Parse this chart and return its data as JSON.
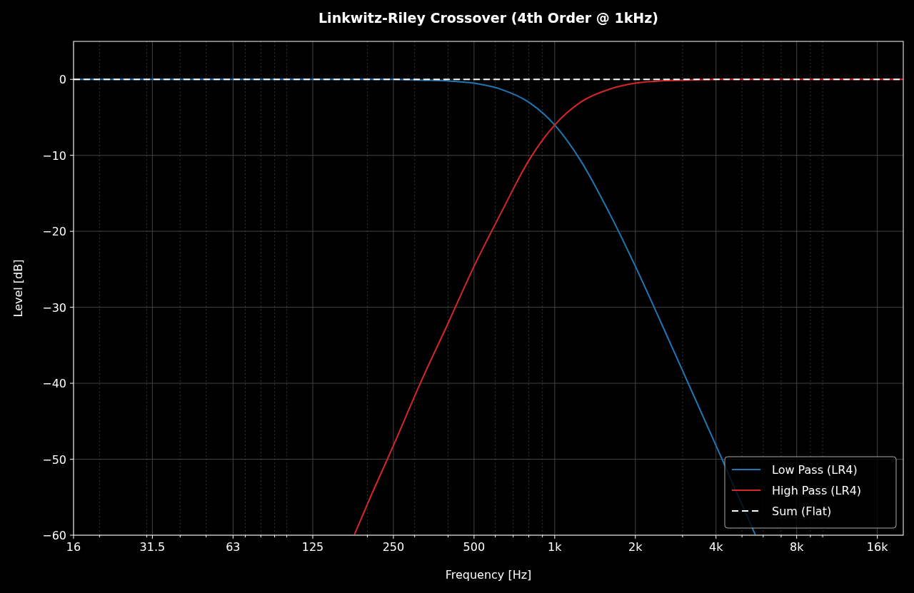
{
  "chart_data": {
    "type": "line",
    "title": "Linkwitz-Riley Crossover (4th Order @ 1kHz)",
    "xlabel": "Frequency [Hz]",
    "ylabel": "Level [dB]",
    "log": "x",
    "grid": true,
    "legend": "bottom right",
    "xlim": [
      16,
      20000
    ],
    "ylim": [
      -60,
      5
    ],
    "xticks": [
      16,
      {
        "value": 20,
        "label": null
      },
      {
        "value": 30,
        "label": null
      },
      31.5,
      {
        "value": 40,
        "label": null
      },
      {
        "value": 50,
        "label": null
      },
      63,
      {
        "value": 70,
        "label": null
      },
      {
        "value": 80,
        "label": null
      },
      {
        "value": 90,
        "label": null
      },
      {
        "value": 100,
        "label": null
      },
      125,
      {
        "value": 200,
        "label": null
      },
      250,
      {
        "value": 300,
        "label": null
      },
      {
        "value": 400,
        "label": null
      },
      500,
      {
        "value": 600,
        "label": null
      },
      {
        "value": 700,
        "label": null
      },
      {
        "value": 800,
        "label": null
      },
      {
        "value": 900,
        "label": null
      },
      {
        "value": 1000,
        "label": "1k"
      },
      {
        "value": 2000,
        "label": "2k"
      },
      {
        "value": 3000,
        "label": null
      },
      {
        "value": 4000,
        "label": "4k"
      },
      {
        "value": 5000,
        "label": null
      },
      {
        "value": 6000,
        "label": null
      },
      {
        "value": 7000,
        "label": null
      },
      {
        "value": 8000,
        "label": "8k"
      },
      {
        "value": 9000,
        "label": null
      },
      {
        "value": 10000,
        "label": null
      },
      {
        "value": 16000,
        "label": "16k"
      }
    ],
    "yticks": [
      0,
      {
        "value": -10,
        "label": "−10"
      },
      {
        "value": -20,
        "label": "−20"
      },
      {
        "value": -30,
        "label": "−30"
      },
      {
        "value": -40,
        "label": "−40"
      },
      {
        "value": -50,
        "label": "−50"
      },
      {
        "value": -60,
        "label": "−60"
      }
    ],
    "series": [
      {
        "name": "Low Pass (LR4)",
        "color": "#1f77b4",
        "x": [
          16,
          63,
          125,
          250,
          315,
          400,
          500,
          630,
          800,
          1000,
          1250,
          1600,
          2000,
          2500,
          3150,
          4000,
          5600
        ],
        "values": [
          0,
          0,
          0,
          0,
          -0.1,
          -0.2,
          -0.5,
          -1.3,
          -3.0,
          -6.0,
          -10.7,
          -17.6,
          -24.6,
          -32.1,
          -40.0,
          -48.2,
          -59.9
        ]
      },
      {
        "name": "High Pass (LR4)",
        "color": "#d62728",
        "x": [
          179,
          200,
          250,
          315,
          400,
          500,
          630,
          800,
          1000,
          1250,
          1600,
          2000,
          2500,
          3150,
          4000,
          8000,
          20000
        ],
        "values": [
          -59.9,
          -55.9,
          -48.2,
          -40.0,
          -32.1,
          -24.6,
          -17.6,
          -10.7,
          -6.0,
          -3.0,
          -1.3,
          -0.5,
          -0.2,
          -0.1,
          0,
          0,
          0
        ]
      },
      {
        "name": "Sum (Flat)",
        "color": "#ffffff",
        "line_style": "dashed",
        "x": [
          16,
          20000
        ],
        "values": [
          0,
          0
        ]
      }
    ]
  }
}
